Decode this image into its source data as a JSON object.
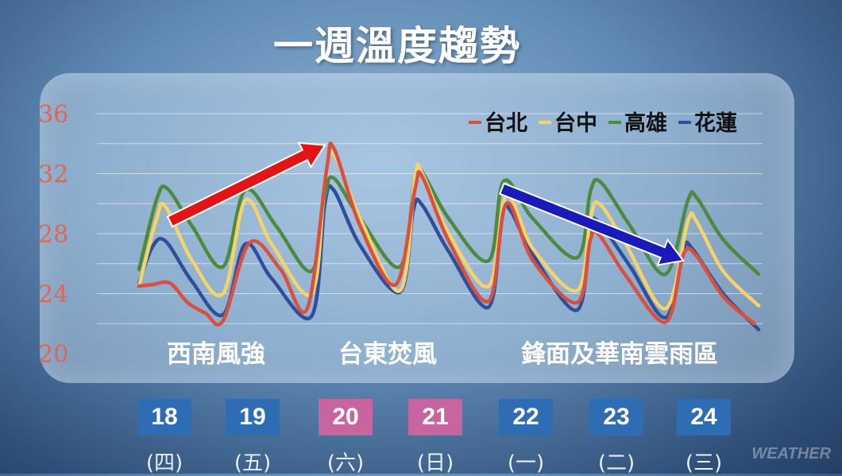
{
  "title": "一週溫度趨勢",
  "chart_data": {
    "type": "line",
    "ylim": [
      20,
      36
    ],
    "yticks": [
      20,
      24,
      28,
      32,
      36
    ],
    "grid": true,
    "legend_position": "top-right",
    "x_range": [
      0,
      7
    ],
    "series": [
      {
        "name": "台北",
        "color": "#d9503e",
        "points": [
          [
            0,
            24.5
          ],
          [
            0.15,
            24.6
          ],
          [
            0.35,
            24.7
          ],
          [
            0.55,
            23.4
          ],
          [
            0.75,
            22.7
          ],
          [
            0.95,
            22.2
          ],
          [
            1.25,
            27.4
          ],
          [
            1.6,
            25.6
          ],
          [
            1.9,
            23.0
          ],
          [
            2.12,
            32.3
          ],
          [
            2.2,
            33.7
          ],
          [
            2.5,
            28.5
          ],
          [
            2.9,
            24.6
          ],
          [
            3.12,
            31.0
          ],
          [
            3.2,
            31.8
          ],
          [
            3.5,
            27.5
          ],
          [
            3.95,
            23.5
          ],
          [
            4.15,
            30.0
          ],
          [
            4.45,
            26.2
          ],
          [
            4.95,
            23.4
          ],
          [
            5.1,
            27.6
          ],
          [
            5.2,
            27.9
          ],
          [
            5.5,
            25.2
          ],
          [
            5.95,
            22.1
          ],
          [
            6.15,
            26.6
          ],
          [
            6.3,
            26.5
          ],
          [
            6.6,
            23.8
          ],
          [
            6.95,
            22.0
          ]
        ]
      },
      {
        "name": "台中",
        "color": "#f3d36a",
        "points": [
          [
            0,
            24.5
          ],
          [
            0.2,
            29.0
          ],
          [
            0.3,
            29.8
          ],
          [
            0.6,
            26.2
          ],
          [
            0.95,
            24.0
          ],
          [
            1.2,
            30.2
          ],
          [
            1.5,
            27.3
          ],
          [
            1.95,
            24.0
          ],
          [
            2.1,
            31.5
          ],
          [
            2.2,
            33.3
          ],
          [
            2.5,
            29.0
          ],
          [
            2.95,
            24.2
          ],
          [
            3.12,
            31.8
          ],
          [
            3.2,
            32.0
          ],
          [
            3.5,
            28.0
          ],
          [
            3.95,
            24.5
          ],
          [
            4.15,
            30.5
          ],
          [
            4.45,
            27.0
          ],
          [
            4.95,
            24.2
          ],
          [
            5.1,
            29.0
          ],
          [
            5.2,
            30.0
          ],
          [
            5.5,
            27.3
          ],
          [
            5.95,
            23.0
          ],
          [
            6.2,
            28.8
          ],
          [
            6.3,
            28.8
          ],
          [
            6.6,
            25.5
          ],
          [
            7.0,
            23.2
          ]
        ]
      },
      {
        "name": "高雄",
        "color": "#4e8a3c",
        "points": [
          [
            0,
            25.6
          ],
          [
            0.2,
            30.3
          ],
          [
            0.32,
            31.0
          ],
          [
            0.6,
            28.5
          ],
          [
            0.95,
            25.8
          ],
          [
            1.2,
            30.9
          ],
          [
            1.55,
            28.5
          ],
          [
            1.95,
            25.5
          ],
          [
            2.1,
            30.5
          ],
          [
            2.2,
            31.7
          ],
          [
            2.5,
            29.0
          ],
          [
            2.95,
            25.8
          ],
          [
            3.12,
            31.8
          ],
          [
            3.2,
            32.1
          ],
          [
            3.5,
            29.0
          ],
          [
            3.95,
            26.2
          ],
          [
            4.12,
            31.5
          ],
          [
            4.45,
            29.0
          ],
          [
            4.95,
            26.4
          ],
          [
            5.1,
            30.8
          ],
          [
            5.22,
            31.4
          ],
          [
            5.55,
            28.5
          ],
          [
            5.95,
            25.3
          ],
          [
            6.2,
            30.2
          ],
          [
            6.3,
            30.4
          ],
          [
            6.6,
            27.6
          ],
          [
            7.0,
            25.3
          ]
        ]
      },
      {
        "name": "花蓮",
        "color": "#2f4f9c",
        "points": [
          [
            0,
            24.7
          ],
          [
            0.15,
            27.1
          ],
          [
            0.3,
            27.5
          ],
          [
            0.6,
            24.8
          ],
          [
            0.95,
            22.6
          ],
          [
            1.2,
            27.3
          ],
          [
            1.5,
            25.0
          ],
          [
            1.95,
            22.5
          ],
          [
            2.1,
            30.0
          ],
          [
            2.2,
            30.9
          ],
          [
            2.5,
            27.2
          ],
          [
            2.95,
            24.1
          ],
          [
            3.1,
            29.6
          ],
          [
            3.2,
            29.9
          ],
          [
            3.5,
            26.8
          ],
          [
            3.95,
            23.1
          ],
          [
            4.1,
            29.3
          ],
          [
            4.2,
            29.5
          ],
          [
            4.45,
            26.6
          ],
          [
            4.95,
            22.9
          ],
          [
            5.1,
            28.3
          ],
          [
            5.2,
            28.7
          ],
          [
            5.55,
            25.8
          ],
          [
            5.95,
            22.4
          ],
          [
            6.15,
            26.9
          ],
          [
            6.25,
            27.0
          ],
          [
            6.6,
            24.0
          ],
          [
            7.0,
            21.6
          ]
        ]
      }
    ],
    "annotations": [
      "西南風強",
      "台東焚風",
      "鋒面及華南雲雨區"
    ],
    "trend_arrows": [
      {
        "color": "#e31414",
        "from": [
          0.35,
          28.8
        ],
        "to": [
          2.1,
          33.9
        ]
      },
      {
        "color": "#1a1ab8",
        "from": [
          4.1,
          31.0
        ],
        "to": [
          6.15,
          26.2
        ]
      }
    ]
  },
  "dates": [
    {
      "date": "18",
      "day": "(四)",
      "color": "#2e6db4"
    },
    {
      "date": "19",
      "day": "(五)",
      "color": "#2e6db4"
    },
    {
      "date": "20",
      "day": "(六)",
      "color": "#c8649f"
    },
    {
      "date": "21",
      "day": "(日)",
      "color": "#c8649f"
    },
    {
      "date": "22",
      "day": "(一)",
      "color": "#2e6db4"
    },
    {
      "date": "23",
      "day": "(二)",
      "color": "#2e6db4"
    },
    {
      "date": "24",
      "day": "(三)",
      "color": "#2e6db4"
    }
  ],
  "watermark": "WEATHER",
  "colors": {
    "tick_label": "#e2664d",
    "grid": "#ffffff"
  }
}
